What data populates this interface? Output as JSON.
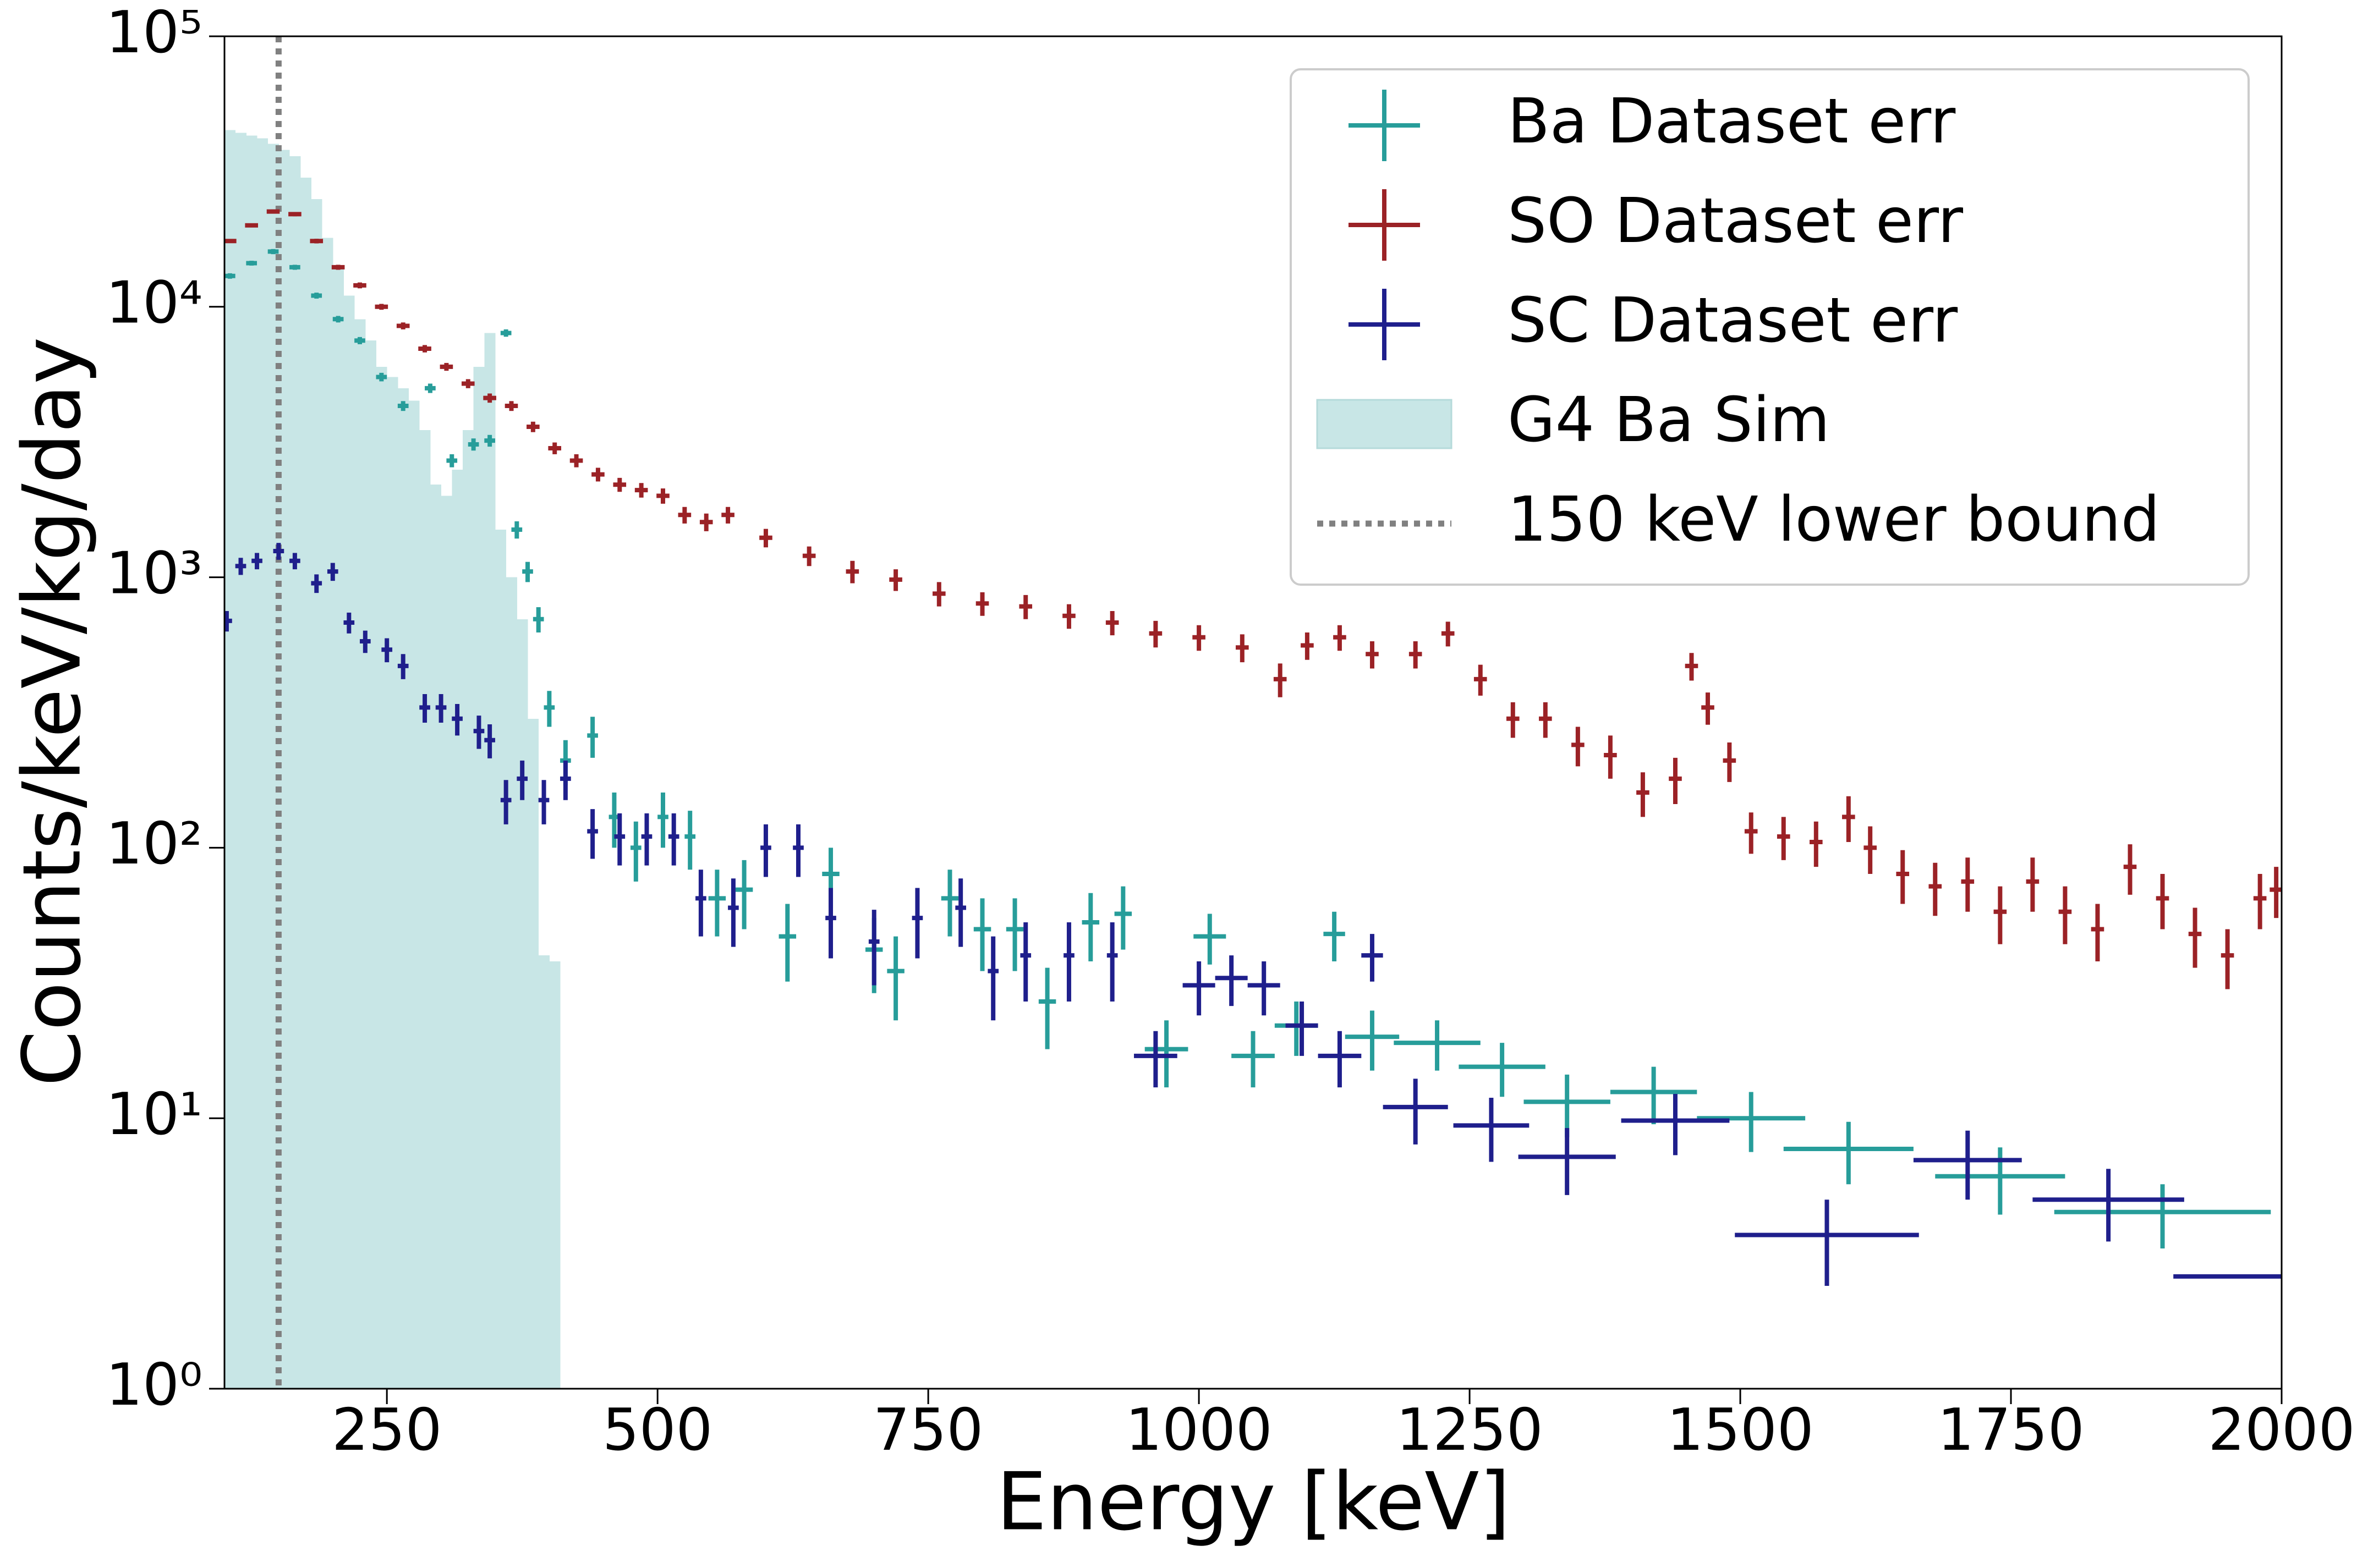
{
  "chart_data": {
    "type": "errorbar",
    "xlabel": "Energy [keV]",
    "ylabel": "Counts/keV/kg/day",
    "xlim": [
      100,
      2000
    ],
    "xticks": [
      250,
      500,
      750,
      1000,
      1250,
      1500,
      1750,
      2000
    ],
    "ylim": [
      1,
      100000
    ],
    "log_y": true,
    "yticks": [
      {
        "value": 1,
        "label": "10⁰"
      },
      {
        "value": 10,
        "label": "10¹"
      },
      {
        "value": 100,
        "label": "10²"
      },
      {
        "value": 1000,
        "label": "10³"
      },
      {
        "value": 10000,
        "label": "10⁴"
      },
      {
        "value": 100000,
        "label": "10⁵"
      }
    ],
    "legend_loc": "upper right",
    "sim": {
      "name": "G4 Ba Sim",
      "color": "#c8e6e6",
      "bins": [
        100,
        110,
        120,
        130,
        140,
        150,
        160,
        170,
        180,
        190,
        200,
        210,
        220,
        230,
        240,
        250,
        260,
        270,
        280,
        290,
        300,
        310,
        320,
        330,
        340,
        350,
        360,
        370,
        380,
        390,
        400,
        410
      ],
      "values": [
        45000,
        44000,
        43000,
        42000,
        40000,
        38000,
        36000,
        30000,
        25000,
        18000,
        14000,
        11000,
        9000,
        7500,
        6000,
        5500,
        5000,
        4500,
        3500,
        2200,
        2000,
        2500,
        3500,
        6000,
        8000,
        1500,
        1000,
        700,
        300,
        40,
        38
      ]
    },
    "lower_bound": {
      "value": 150,
      "label": "150 keV lower bound",
      "color": "#808080"
    },
    "series": [
      {
        "name": "Ba Dataset err",
        "color": "#279d9a",
        "x": [
          105,
          125,
          145,
          165,
          185,
          205,
          225,
          245,
          265,
          290,
          310,
          330,
          345,
          360,
          370,
          380,
          390,
          400,
          415,
          440,
          460,
          480,
          505,
          530,
          555,
          580,
          620,
          660,
          700,
          720,
          770,
          800,
          830,
          860,
          900,
          930,
          970,
          1010,
          1050,
          1090,
          1125,
          1160,
          1220,
          1280,
          1340,
          1420,
          1510,
          1600,
          1740,
          1890
        ],
        "values": [
          13000,
          14500,
          16000,
          14000,
          11000,
          9000,
          7500,
          5500,
          4300,
          5000,
          2700,
          3100,
          3200,
          8000,
          1500,
          1050,
          700,
          330,
          210,
          260,
          130,
          100,
          130,
          110,
          65,
          70,
          47,
          80,
          42,
          35,
          65,
          50,
          50,
          27,
          53,
          57,
          18,
          47,
          17,
          22,
          48,
          20,
          19,
          15.5,
          11.5,
          12.5,
          10,
          7.7,
          6.1,
          4.5
        ],
        "yerr": [
          300,
          300,
          350,
          300,
          280,
          250,
          230,
          200,
          180,
          200,
          150,
          160,
          160,
          250,
          110,
          90,
          75,
          50,
          40,
          45,
          30,
          25,
          30,
          27,
          18,
          20,
          15,
          20,
          13,
          12,
          18,
          15,
          15,
          9,
          15,
          15,
          5,
          10,
          4,
          5,
          10,
          5,
          4,
          3.5,
          3,
          3,
          2.5,
          2,
          1.7,
          1.2
        ],
        "xerr": [
          5,
          5,
          5,
          5,
          5,
          5,
          5,
          5,
          5,
          5,
          5,
          5,
          5,
          5,
          5,
          5,
          5,
          5,
          5,
          5,
          5,
          5,
          5,
          5,
          8,
          8,
          8,
          8,
          8,
          8,
          8,
          8,
          8,
          8,
          8,
          8,
          20,
          15,
          20,
          20,
          10,
          25,
          40,
          40,
          40,
          40,
          50,
          60,
          60,
          100
        ]
      },
      {
        "name": "SO Dataset err",
        "color": "#9b2226",
        "x": [
          105,
          125,
          145,
          165,
          185,
          205,
          225,
          245,
          265,
          285,
          305,
          325,
          345,
          365,
          385,
          405,
          425,
          445,
          465,
          485,
          505,
          525,
          545,
          565,
          600,
          640,
          680,
          720,
          760,
          800,
          840,
          880,
          920,
          960,
          1000,
          1040,
          1075,
          1100,
          1130,
          1160,
          1200,
          1230,
          1260,
          1290,
          1320,
          1350,
          1380,
          1410,
          1440,
          1455,
          1470,
          1490,
          1510,
          1540,
          1570,
          1600,
          1620,
          1650,
          1680,
          1710,
          1740,
          1770,
          1800,
          1830,
          1860,
          1890,
          1920,
          1950,
          1980,
          1995
        ],
        "values": [
          17500,
          20000,
          22500,
          22000,
          17500,
          14000,
          12000,
          10000,
          8500,
          7000,
          6000,
          5200,
          4600,
          4300,
          3600,
          3000,
          2700,
          2400,
          2200,
          2100,
          2000,
          1700,
          1600,
          1700,
          1400,
          1200,
          1050,
          980,
          870,
          800,
          780,
          720,
          680,
          620,
          600,
          550,
          420,
          560,
          600,
          520,
          520,
          620,
          420,
          300,
          300,
          240,
          220,
          160,
          180,
          470,
          330,
          210,
          115,
          110,
          105,
          130,
          100,
          80,
          72,
          75,
          58,
          75,
          58,
          50,
          85,
          65,
          48,
          40,
          65,
          70
        ],
        "yerr": [
          300,
          350,
          400,
          400,
          350,
          300,
          300,
          250,
          250,
          220,
          200,
          200,
          180,
          180,
          160,
          150,
          150,
          140,
          130,
          130,
          130,
          120,
          120,
          120,
          110,
          100,
          100,
          90,
          90,
          80,
          80,
          75,
          70,
          70,
          65,
          65,
          60,
          65,
          65,
          60,
          60,
          65,
          55,
          45,
          45,
          40,
          40,
          30,
          35,
          55,
          45,
          35,
          20,
          20,
          20,
          25,
          20,
          18,
          16,
          17,
          14,
          17,
          14,
          12,
          18,
          15,
          12,
          10,
          15,
          15
        ],
        "xerr": 6
      },
      {
        "name": "SC Dataset err",
        "color": "#1f1f8c",
        "x": [
          102,
          115,
          130,
          150,
          165,
          185,
          200,
          215,
          230,
          250,
          265,
          285,
          300,
          315,
          335,
          345,
          360,
          375,
          395,
          415,
          440,
          465,
          490,
          515,
          540,
          570,
          600,
          630,
          660,
          700,
          740,
          780,
          810,
          840,
          880,
          920,
          960,
          1000,
          1030,
          1060,
          1095,
          1130,
          1160,
          1200,
          1270,
          1340,
          1440,
          1580,
          1710,
          1840,
          1950
        ],
        "values": [
          690,
          1100,
          1150,
          1250,
          1150,
          950,
          1050,
          680,
          580,
          540,
          470,
          330,
          330,
          300,
          270,
          250,
          150,
          180,
          150,
          180,
          115,
          110,
          110,
          110,
          65,
          60,
          100,
          100,
          55,
          45,
          55,
          60,
          35,
          40,
          40,
          40,
          17,
          31,
          33,
          31,
          22,
          17,
          40,
          11,
          9.4,
          7.2,
          9.8,
          3.7,
          7.0,
          5.0,
          2.6
        ],
        "yerr": [
          60,
          80,
          80,
          90,
          80,
          75,
          80,
          60,
          55,
          55,
          50,
          40,
          40,
          40,
          38,
          36,
          28,
          30,
          28,
          30,
          24,
          24,
          24,
          24,
          18,
          17,
          22,
          22,
          16,
          14,
          16,
          17,
          12,
          13,
          13,
          13,
          4,
          7,
          7,
          7,
          5,
          4,
          8,
          3,
          2.5,
          2,
          2.5,
          1.3,
          2,
          1.5,
          0
        ],
        "xerr": [
          5,
          5,
          5,
          5,
          5,
          5,
          5,
          5,
          5,
          5,
          5,
          5,
          5,
          5,
          5,
          5,
          5,
          5,
          5,
          5,
          5,
          5,
          5,
          5,
          5,
          5,
          5,
          5,
          5,
          5,
          5,
          5,
          5,
          5,
          5,
          5,
          20,
          15,
          15,
          15,
          15,
          20,
          10,
          30,
          35,
          45,
          50,
          85,
          50,
          70,
          50
        ]
      }
    ]
  }
}
